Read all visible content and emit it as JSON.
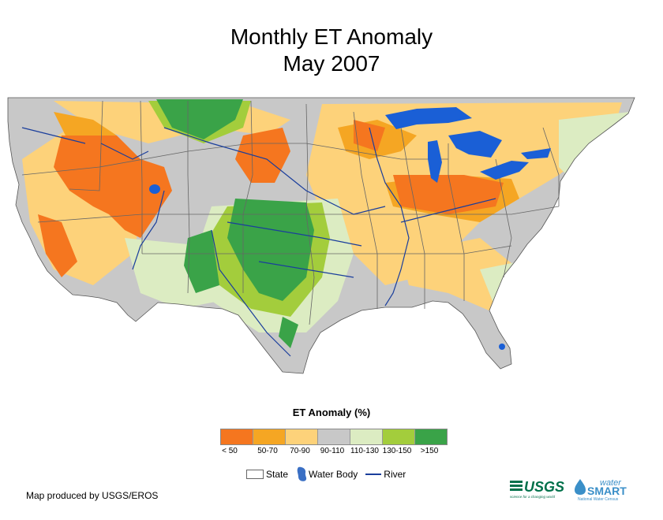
{
  "title": {
    "line1": "Monthly ET Anomaly",
    "line2": "May 2007"
  },
  "legend": {
    "title": "ET Anomaly (%)",
    "classes": [
      {
        "label": "< 50",
        "color": "#f5761f"
      },
      {
        "label": "50-70",
        "color": "#f5a623"
      },
      {
        "label": "70-90",
        "color": "#fdd27a"
      },
      {
        "label": "90-110",
        "color": "#c8c8c8"
      },
      {
        "label": "110-130",
        "color": "#dcecc2"
      },
      {
        "label": "130-150",
        "color": "#a3cd3c"
      },
      {
        "label": ">150",
        "color": "#3aa348"
      }
    ]
  },
  "reference": {
    "state": "State",
    "water_body": "Water Body",
    "river": "River"
  },
  "credit": "Map produced by USGS/EROS",
  "logos": {
    "usgs": "USGS",
    "usgs_tagline": "science for a changing world",
    "water": "water",
    "smart": "SMART",
    "census": "National Water Census"
  },
  "colors": {
    "water": "#1a5fd6",
    "river": "#1a3e9c",
    "state_line": "#666666",
    "land": "#c8c8c8",
    "usgs_green": "#00704a",
    "watersmart_blue": "#3a8fc8"
  }
}
